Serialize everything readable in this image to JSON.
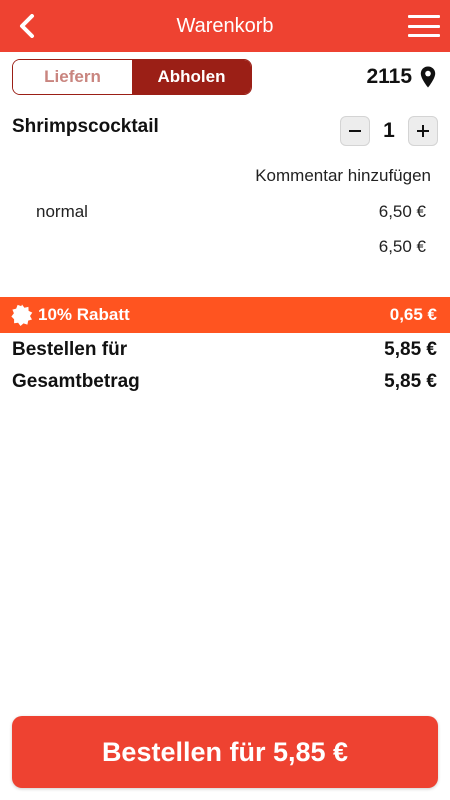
{
  "header": {
    "title": "Warenkorb",
    "bg_color": "#EE4231"
  },
  "mode_toggle": {
    "options": [
      "Liefern",
      "Abholen"
    ],
    "selected": "Abholen",
    "active_color": "#9B1F16"
  },
  "location": {
    "zip": "2115",
    "icon": "map-pin-icon"
  },
  "cart": {
    "items": [
      {
        "name": "Shrimpscocktail",
        "quantity": "1",
        "comment_link": "Kommentar hinzufügen",
        "variant": "normal",
        "variant_price": "6,50 €",
        "item_total": "6,50 €"
      }
    ]
  },
  "discount": {
    "label": "10% Rabatt",
    "amount": "0,65 €",
    "icon": "badge-icon",
    "bg_color": "#FF5420"
  },
  "summary": {
    "order_for_label": "Bestellen für",
    "order_for_value": "5,85 €",
    "total_label": "Gesamtbetrag",
    "total_value": "5,85 €"
  },
  "order_button": {
    "label": "Bestellen für 5,85 €"
  }
}
